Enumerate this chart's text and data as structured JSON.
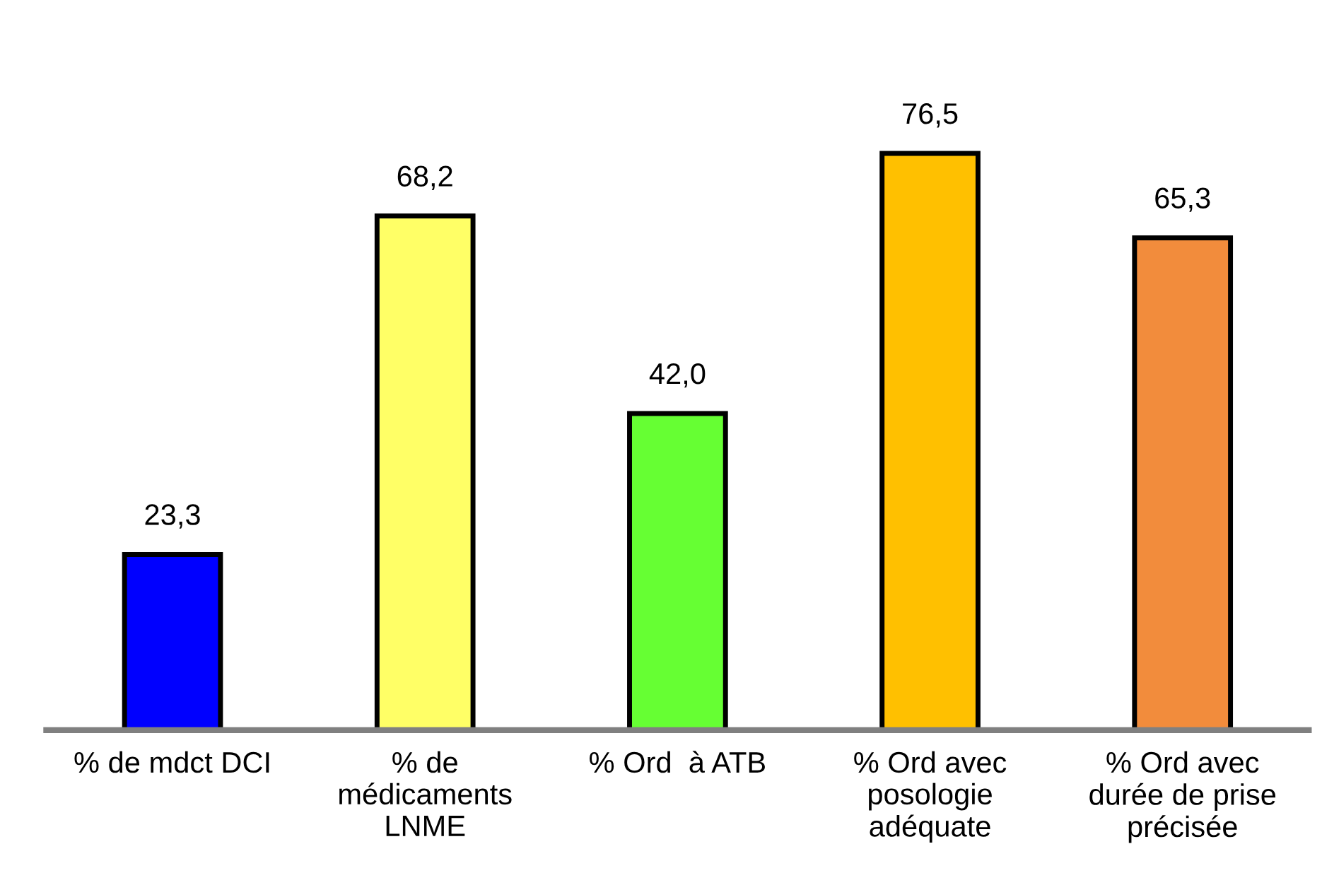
{
  "chart_data": {
    "type": "bar",
    "categories": [
      "% de mdct DCI",
      "% de médicaments LNME",
      "% Ord  à ATB",
      "% Ord avec posologie adéquate",
      "% Ord avec durée de prise précisée"
    ],
    "values": [
      23.3,
      68.2,
      42.0,
      76.5,
      65.3
    ],
    "colors": [
      "#0000ff",
      "#ffff66",
      "#66ff33",
      "#ffc000",
      "#f28c3c"
    ],
    "value_labels": [
      "23,3",
      "68,2",
      "42,0",
      "76,5",
      "65,3"
    ],
    "grid": false,
    "legend": false
  }
}
